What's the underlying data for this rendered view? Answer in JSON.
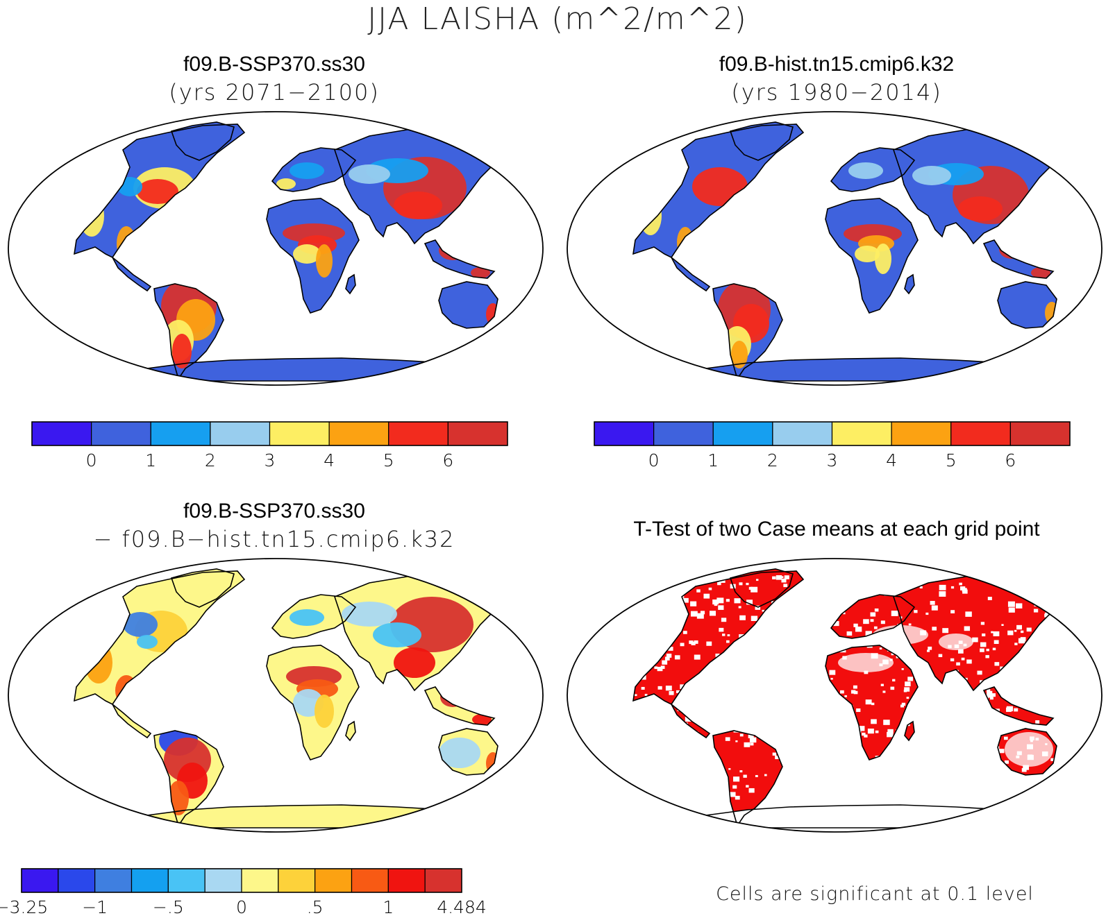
{
  "figure": {
    "title": "JJA LAISHA (m^2/m^2)"
  },
  "panels": {
    "top_left": {
      "title": "f09.B-SSP370.ss30",
      "subtitle": "(yrs 2071−2100)"
    },
    "top_right": {
      "title": "f09.B-hist.tn15.cmip6.k32",
      "subtitle": "(yrs 1980−2014)"
    },
    "bottom_left": {
      "title": "f09.B-SSP370.ss30",
      "subtitle": "− f09.B−hist.tn15.cmip6.k32"
    },
    "bottom_right": {
      "title": "T-Test of two Case means at each grid point",
      "note": "Cells are significant at 0.1 level"
    }
  },
  "colorbars": {
    "abs": {
      "colors": [
        "#3a18f0",
        "#3f62dd",
        "#169ff0",
        "#98cdee",
        "#fdee63",
        "#fca212",
        "#f22b1e",
        "#d7322e"
      ],
      "labels": [
        "0",
        "1",
        "2",
        "3",
        "4",
        "5",
        "6"
      ]
    },
    "diff": {
      "colors": [
        "#3a18f0",
        "#2a48eb",
        "#3f7fe0",
        "#14a0f0",
        "#49c3f5",
        "#a9d8f2",
        "#fdf78a",
        "#fdd23a",
        "#fca212",
        "#f85a14",
        "#f01410",
        "#d7322e"
      ],
      "labels": [
        "−3.25",
        "−1",
        "−.5",
        "0",
        ".5",
        "1",
        "4.484"
      ]
    }
  },
  "map_colors": {
    "ocean": "#ffffff",
    "coast": "#000000",
    "significant": "#f20d0d"
  }
}
